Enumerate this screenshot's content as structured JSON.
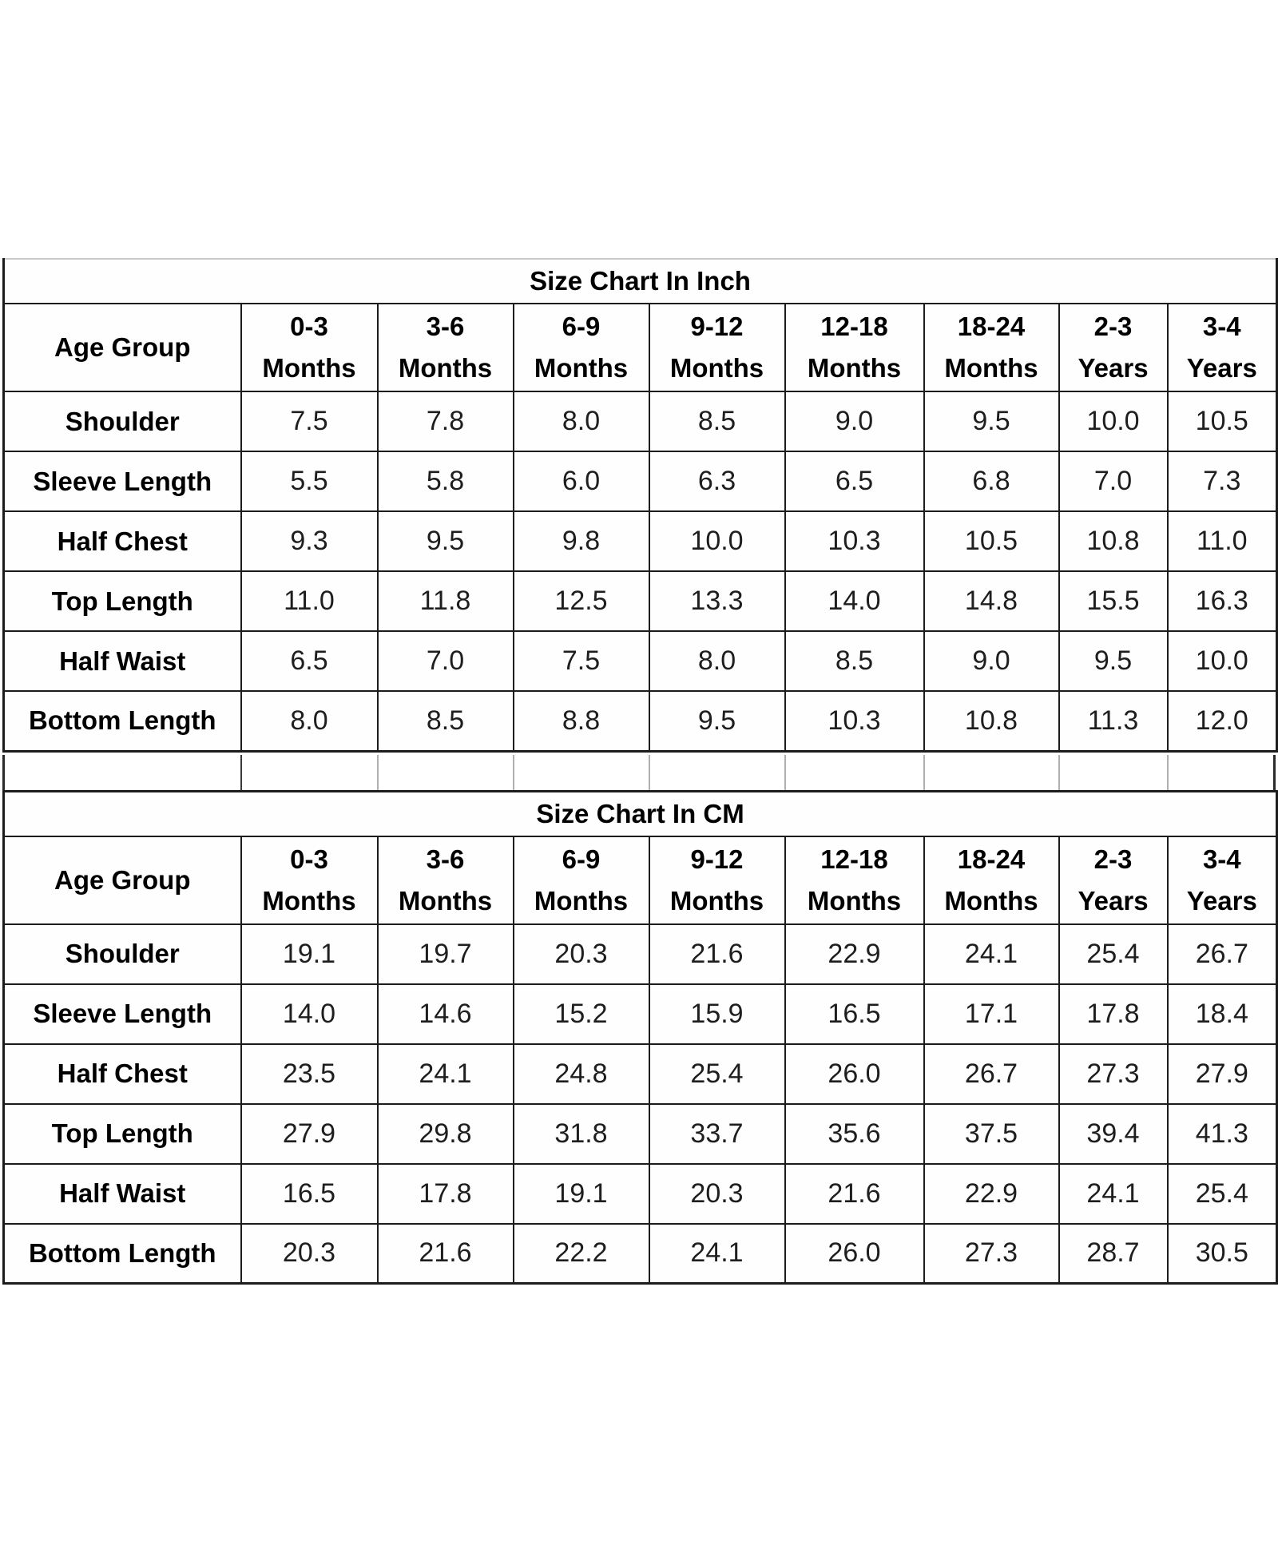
{
  "page": {
    "background": "#ffffff",
    "border_color": "#1c1c1c"
  },
  "tables": [
    {
      "id": "inch",
      "title": "Size Chart In Inch",
      "corner_header": "Age Group",
      "columns": [
        {
          "range": "0-3",
          "unit": "Months"
        },
        {
          "range": "3-6",
          "unit": "Months"
        },
        {
          "range": "6-9",
          "unit": "Months"
        },
        {
          "range": "9-12",
          "unit": "Months"
        },
        {
          "range": "12-18",
          "unit": "Months"
        },
        {
          "range": "18-24",
          "unit": "Months"
        },
        {
          "range": "2-3",
          "unit": "Years"
        },
        {
          "range": "3-4",
          "unit": "Years"
        }
      ],
      "rows": [
        {
          "label": "Shoulder",
          "values": [
            "7.5",
            "7.8",
            "8.0",
            "8.5",
            "9.0",
            "9.5",
            "10.0",
            "10.5"
          ]
        },
        {
          "label": "Sleeve Length",
          "values": [
            "5.5",
            "5.8",
            "6.0",
            "6.3",
            "6.5",
            "6.8",
            "7.0",
            "7.3"
          ]
        },
        {
          "label": "Half Chest",
          "values": [
            "9.3",
            "9.5",
            "9.8",
            "10.0",
            "10.3",
            "10.5",
            "10.8",
            "11.0"
          ]
        },
        {
          "label": "Top Length",
          "values": [
            "11.0",
            "11.8",
            "12.5",
            "13.3",
            "14.0",
            "14.8",
            "15.5",
            "16.3"
          ]
        },
        {
          "label": "Half Waist",
          "values": [
            "6.5",
            "7.0",
            "7.5",
            "8.0",
            "8.5",
            "9.0",
            "9.5",
            "10.0"
          ]
        },
        {
          "label": "Bottom Length",
          "values": [
            "8.0",
            "8.5",
            "8.8",
            "9.5",
            "10.3",
            "10.8",
            "11.3",
            "12.0"
          ]
        }
      ]
    },
    {
      "id": "cm",
      "title": "Size Chart In CM",
      "corner_header": "Age Group",
      "columns": [
        {
          "range": "0-3",
          "unit": "Months"
        },
        {
          "range": "3-6",
          "unit": "Months"
        },
        {
          "range": "6-9",
          "unit": "Months"
        },
        {
          "range": "9-12",
          "unit": "Months"
        },
        {
          "range": "12-18",
          "unit": "Months"
        },
        {
          "range": "18-24",
          "unit": "Months"
        },
        {
          "range": "2-3",
          "unit": "Years"
        },
        {
          "range": "3-4",
          "unit": "Years"
        }
      ],
      "rows": [
        {
          "label": "Shoulder",
          "values": [
            "19.1",
            "19.7",
            "20.3",
            "21.6",
            "22.9",
            "24.1",
            "25.4",
            "26.7"
          ]
        },
        {
          "label": "Sleeve Length",
          "values": [
            "14.0",
            "14.6",
            "15.2",
            "15.9",
            "16.5",
            "17.1",
            "17.8",
            "18.4"
          ]
        },
        {
          "label": "Half Chest",
          "values": [
            "23.5",
            "24.1",
            "24.8",
            "25.4",
            "26.0",
            "26.7",
            "27.3",
            "27.9"
          ]
        },
        {
          "label": "Top Length",
          "values": [
            "27.9",
            "29.8",
            "31.8",
            "33.7",
            "35.6",
            "37.5",
            "39.4",
            "41.3"
          ]
        },
        {
          "label": "Half Waist",
          "values": [
            "16.5",
            "17.8",
            "19.1",
            "20.3",
            "21.6",
            "22.9",
            "24.1",
            "25.4"
          ]
        },
        {
          "label": "Bottom Length",
          "values": [
            "20.3",
            "21.6",
            "22.2",
            "24.1",
            "26.0",
            "27.3",
            "28.7",
            "30.5"
          ]
        }
      ]
    }
  ]
}
